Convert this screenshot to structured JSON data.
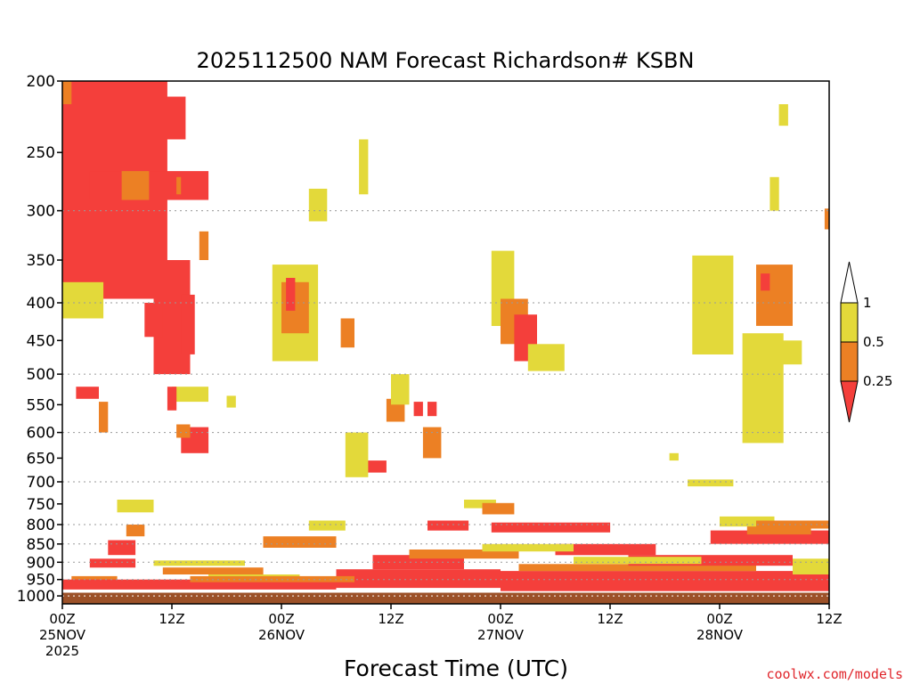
{
  "chart_data": {
    "type": "heatmap",
    "title": "2025112500 NAM Forecast Richardson# KSBN",
    "xlabel": "Forecast Time (UTC)",
    "ylabel": "",
    "credit": "coolwx.com/models",
    "x_unit": "forecast hour",
    "x_range": [
      0,
      84
    ],
    "x_ticks": [
      {
        "hour": 0,
        "label": "00Z",
        "date": "25NOV",
        "year": "2025"
      },
      {
        "hour": 12,
        "label": "12Z",
        "date": "",
        "year": ""
      },
      {
        "hour": 24,
        "label": "00Z",
        "date": "26NOV",
        "year": ""
      },
      {
        "hour": 36,
        "label": "12Z",
        "date": "",
        "year": ""
      },
      {
        "hour": 48,
        "label": "00Z",
        "date": "27NOV",
        "year": ""
      },
      {
        "hour": 60,
        "label": "12Z",
        "date": "",
        "year": ""
      },
      {
        "hour": 72,
        "label": "00Z",
        "date": "28NOV",
        "year": ""
      },
      {
        "hour": 84,
        "label": "12Z",
        "date": "",
        "year": ""
      }
    ],
    "y_unit": "hPa",
    "y_scale": "log-pressure",
    "y_range": [
      1025,
      200
    ],
    "y_ticks": [
      200,
      250,
      300,
      350,
      400,
      450,
      500,
      550,
      600,
      650,
      700,
      750,
      800,
      850,
      900,
      950,
      1000
    ],
    "gridlines": [
      300,
      400,
      500,
      600,
      700,
      800,
      850,
      900,
      950,
      1000
    ],
    "surface_pressure": 990,
    "colorbar": {
      "labels": [
        "1",
        "0.5",
        "0.25"
      ],
      "bins": [
        {
          "range": [
            0.5,
            1
          ],
          "color": "#e3d93a"
        },
        {
          "range": [
            0.25,
            0.5
          ],
          "color": "#ec8024"
        },
        {
          "range": [
            null,
            0.25
          ],
          "color": "#f43f3b"
        }
      ]
    },
    "colors": {
      "red": "#f43f3b",
      "orange": "#ec8024",
      "yellow": "#e3d93a",
      "ground": "#9c5128",
      "grid": "#9a9a9a"
    },
    "regions": [
      {
        "cat": "R",
        "t": [
          0,
          11.5
        ],
        "p": [
          200,
          395
        ]
      },
      {
        "cat": "R",
        "t": [
          3,
          16
        ],
        "p": [
          265,
          290
        ]
      },
      {
        "cat": "O",
        "t": [
          0,
          1
        ],
        "p": [
          200,
          215
        ]
      },
      {
        "cat": "O",
        "t": [
          6.5,
          9.5
        ],
        "p": [
          265,
          290
        ]
      },
      {
        "cat": "R",
        "t": [
          10,
          13.5
        ],
        "p": [
          210,
          240
        ]
      },
      {
        "cat": "R",
        "t": [
          10,
          14
        ],
        "p": [
          350,
          500
        ]
      },
      {
        "cat": "R",
        "t": [
          13,
          14.5
        ],
        "p": [
          390,
          470
        ]
      },
      {
        "cat": "Y",
        "t": [
          0,
          4.5
        ],
        "p": [
          375,
          420
        ]
      },
      {
        "cat": "O",
        "t": [
          12.5,
          13
        ],
        "p": [
          270,
          285
        ]
      },
      {
        "cat": "Y",
        "t": [
          18,
          19
        ],
        "p": [
          535,
          555
        ]
      },
      {
        "cat": "O",
        "t": [
          15,
          16
        ],
        "p": [
          320,
          350
        ]
      },
      {
        "cat": "R",
        "t": [
          1.5,
          4
        ],
        "p": [
          520,
          540
        ]
      },
      {
        "cat": "O",
        "t": [
          4,
          5
        ],
        "p": [
          545,
          600
        ]
      },
      {
        "cat": "R",
        "t": [
          9,
          11
        ],
        "p": [
          400,
          445
        ]
      },
      {
        "cat": "Y",
        "t": [
          12,
          16
        ],
        "p": [
          520,
          545
        ]
      },
      {
        "cat": "R",
        "t": [
          11.5,
          12.5
        ],
        "p": [
          520,
          560
        ]
      },
      {
        "cat": "R",
        "t": [
          13,
          16
        ],
        "p": [
          590,
          640
        ]
      },
      {
        "cat": "O",
        "t": [
          12.5,
          14
        ],
        "p": [
          585,
          610
        ]
      },
      {
        "cat": "Y",
        "t": [
          27,
          29
        ],
        "p": [
          280,
          310
        ]
      },
      {
        "cat": "Y",
        "t": [
          23,
          28
        ],
        "p": [
          355,
          480
        ]
      },
      {
        "cat": "O",
        "t": [
          24,
          27
        ],
        "p": [
          375,
          440
        ]
      },
      {
        "cat": "R",
        "t": [
          24.5,
          25.5
        ],
        "p": [
          370,
          410
        ]
      },
      {
        "cat": "Y",
        "t": [
          32.5,
          33.5
        ],
        "p": [
          240,
          285
        ]
      },
      {
        "cat": "O",
        "t": [
          30.5,
          32
        ],
        "p": [
          420,
          460
        ]
      },
      {
        "cat": "O",
        "t": [
          35.5,
          37.5
        ],
        "p": [
          540,
          580
        ]
      },
      {
        "cat": "Y",
        "t": [
          36,
          38
        ],
        "p": [
          500,
          550
        ]
      },
      {
        "cat": "R",
        "t": [
          38.5,
          39.5
        ],
        "p": [
          545,
          570
        ]
      },
      {
        "cat": "O",
        "t": [
          39.5,
          41.5
        ],
        "p": [
          590,
          650
        ]
      },
      {
        "cat": "R",
        "t": [
          40,
          41
        ],
        "p": [
          545,
          570
        ]
      },
      {
        "cat": "R",
        "t": [
          32.5,
          35.5
        ],
        "p": [
          655,
          680
        ]
      },
      {
        "cat": "Y",
        "t": [
          31,
          33.5
        ],
        "p": [
          600,
          690
        ]
      },
      {
        "cat": "Y",
        "t": [
          47,
          49.5
        ],
        "p": [
          340,
          430
        ]
      },
      {
        "cat": "O",
        "t": [
          48,
          51
        ],
        "p": [
          395,
          455
        ]
      },
      {
        "cat": "R",
        "t": [
          49.5,
          52
        ],
        "p": [
          415,
          480
        ]
      },
      {
        "cat": "Y",
        "t": [
          51,
          55
        ],
        "p": [
          455,
          495
        ]
      },
      {
        "cat": "Y",
        "t": [
          66.5,
          67.5
        ],
        "p": [
          640,
          655
        ]
      },
      {
        "cat": "Y",
        "t": [
          69,
          73.5
        ],
        "p": [
          345,
          470
        ]
      },
      {
        "cat": "Y",
        "t": [
          74.5,
          79
        ],
        "p": [
          440,
          620
        ]
      },
      {
        "cat": "O",
        "t": [
          76,
          80
        ],
        "p": [
          355,
          430
        ]
      },
      {
        "cat": "R",
        "t": [
          76.5,
          77.5
        ],
        "p": [
          365,
          385
        ]
      },
      {
        "cat": "Y",
        "t": [
          78,
          81
        ],
        "p": [
          450,
          485
        ]
      },
      {
        "cat": "Y",
        "t": [
          78.5,
          79.5
        ],
        "p": [
          215,
          230
        ]
      },
      {
        "cat": "Y",
        "t": [
          77.5,
          78.5
        ],
        "p": [
          270,
          300
        ]
      },
      {
        "cat": "O",
        "t": [
          83.5,
          84
        ],
        "p": [
          298,
          318
        ]
      },
      {
        "cat": "Y",
        "t": [
          68.5,
          73.5
        ],
        "p": [
          695,
          710
        ]
      },
      {
        "cat": "R",
        "t": [
          40,
          44.5
        ],
        "p": [
          790,
          815
        ]
      },
      {
        "cat": "Y",
        "t": [
          44,
          47.5
        ],
        "p": [
          740,
          760
        ]
      },
      {
        "cat": "O",
        "t": [
          46,
          49.5
        ],
        "p": [
          748,
          775
        ]
      },
      {
        "cat": "R",
        "t": [
          47,
          60
        ],
        "p": [
          795,
          820
        ]
      },
      {
        "cat": "R",
        "t": [
          54,
          65
        ],
        "p": [
          850,
          880
        ]
      },
      {
        "cat": "R",
        "t": [
          71,
          84
        ],
        "p": [
          815,
          850
        ]
      },
      {
        "cat": "O",
        "t": [
          75,
          82
        ],
        "p": [
          800,
          825
        ]
      },
      {
        "cat": "Y",
        "t": [
          72,
          78
        ],
        "p": [
          780,
          805
        ]
      },
      {
        "cat": "O",
        "t": [
          76,
          84
        ],
        "p": [
          790,
          810
        ]
      },
      {
        "cat": "O",
        "t": [
          22,
          30
        ],
        "p": [
          830,
          860
        ]
      },
      {
        "cat": "Y",
        "t": [
          27,
          31
        ],
        "p": [
          790,
          815
        ]
      },
      {
        "cat": "R",
        "t": [
          5,
          8
        ],
        "p": [
          840,
          880
        ]
      },
      {
        "cat": "Y",
        "t": [
          6,
          10
        ],
        "p": [
          740,
          770
        ]
      },
      {
        "cat": "O",
        "t": [
          7,
          9
        ],
        "p": [
          800,
          830
        ]
      },
      {
        "cat": "Y",
        "t": [
          10,
          20
        ],
        "p": [
          895,
          910
        ]
      },
      {
        "cat": "O",
        "t": [
          11,
          22
        ],
        "p": [
          915,
          935
        ]
      },
      {
        "cat": "Y",
        "t": [
          16,
          26
        ],
        "p": [
          935,
          950
        ]
      },
      {
        "cat": "R",
        "t": [
          3,
          8
        ],
        "p": [
          890,
          915
        ]
      },
      {
        "cat": "O",
        "t": [
          1,
          6
        ],
        "p": [
          940,
          960
        ]
      },
      {
        "cat": "R",
        "t": [
          30,
          48
        ],
        "p": [
          920,
          975
        ]
      },
      {
        "cat": "R",
        "t": [
          34,
          44
        ],
        "p": [
          880,
          920
        ]
      },
      {
        "cat": "O",
        "t": [
          38,
          50
        ],
        "p": [
          865,
          890
        ]
      },
      {
        "cat": "Y",
        "t": [
          46,
          56
        ],
        "p": [
          850,
          870
        ]
      },
      {
        "cat": "R",
        "t": [
          48,
          84
        ],
        "p": [
          925,
          985
        ]
      },
      {
        "cat": "O",
        "t": [
          50,
          76
        ],
        "p": [
          905,
          925
        ]
      },
      {
        "cat": "R",
        "t": [
          62,
          80
        ],
        "p": [
          880,
          910
        ]
      },
      {
        "cat": "Y",
        "t": [
          56,
          70
        ],
        "p": [
          885,
          905
        ]
      },
      {
        "cat": "Y",
        "t": [
          80,
          84
        ],
        "p": [
          890,
          935
        ]
      },
      {
        "cat": "R",
        "t": [
          0,
          30
        ],
        "p": [
          950,
          980
        ]
      },
      {
        "cat": "O",
        "t": [
          14,
          32
        ],
        "p": [
          940,
          958
        ]
      }
    ]
  }
}
